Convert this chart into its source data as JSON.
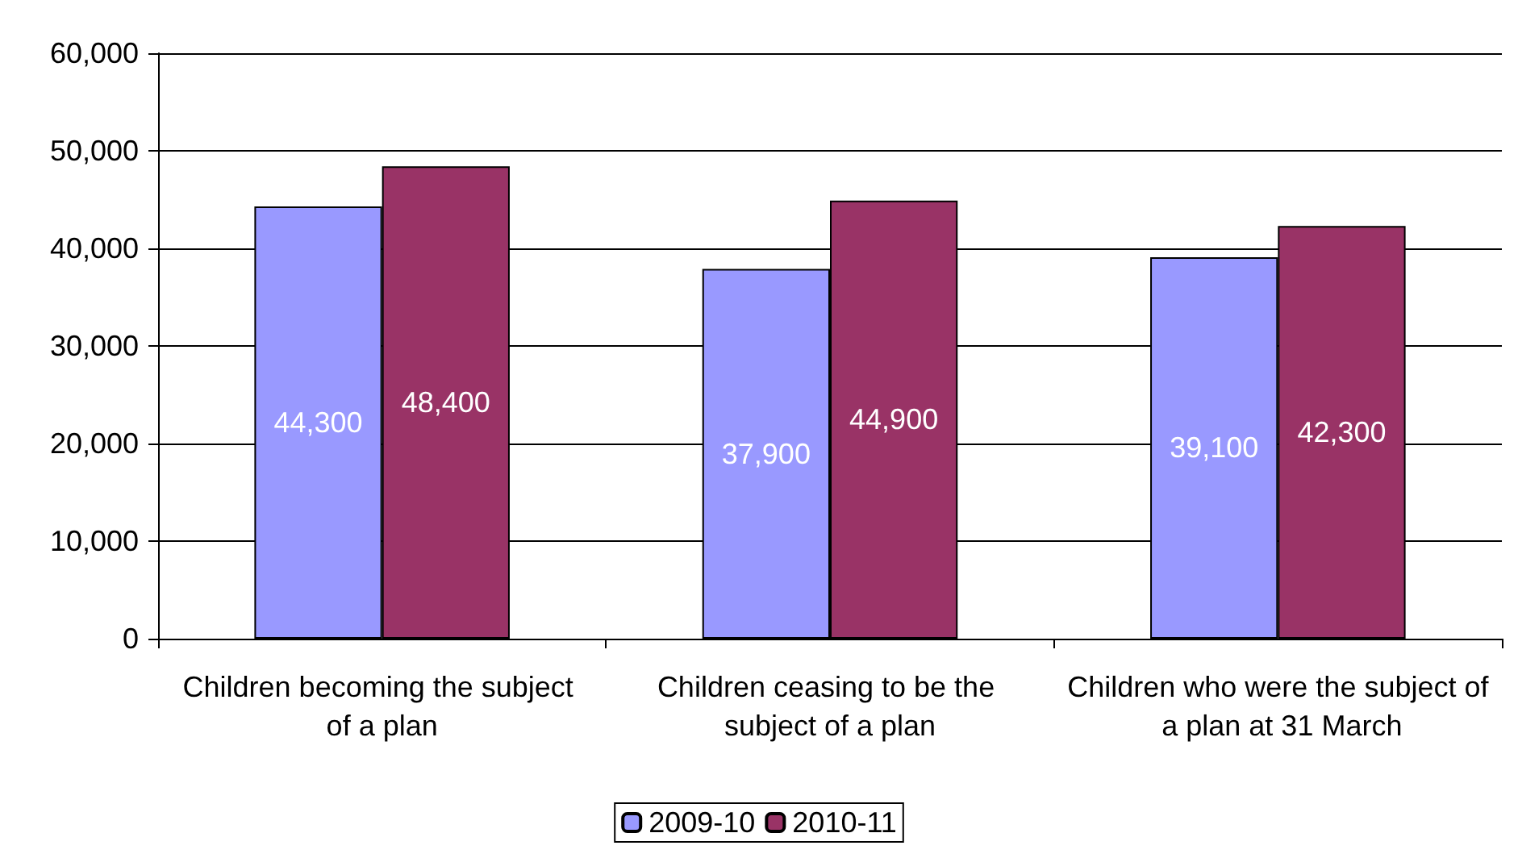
{
  "chart_data": {
    "type": "bar",
    "categories": [
      "Children becoming the subject of a plan",
      "Children ceasing to be the subject of a plan",
      "Children who were the subject of a plan at 31 March"
    ],
    "series": [
      {
        "name": "2009-10",
        "color": "#9999ff",
        "values": [
          44300,
          37900,
          39100
        ],
        "value_labels": [
          "44,300",
          "37,900",
          "39,100"
        ]
      },
      {
        "name": "2010-11",
        "color": "#993366",
        "values": [
          48400,
          44900,
          42300
        ],
        "value_labels": [
          "48,400",
          "44,900",
          "42,300"
        ]
      }
    ],
    "ylim": [
      0,
      60000
    ],
    "yticks": [
      0,
      {
        "value": 10000,
        "label": "10,000"
      },
      {
        "value": 20000,
        "label": "20,000"
      },
      {
        "value": 30000,
        "label": "30,000"
      },
      {
        "value": 40000,
        "label": "40,000"
      },
      {
        "value": 50000,
        "label": "50,000"
      },
      {
        "value": 60000,
        "label": "60,000"
      }
    ],
    "grid": "y",
    "legend": "bottom"
  }
}
